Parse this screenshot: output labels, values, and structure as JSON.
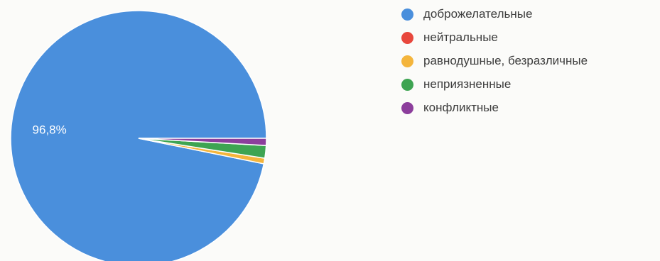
{
  "chart_data": {
    "type": "pie",
    "categories": [
      "доброжелательные",
      "нейтральные",
      "равнодушные, безразличные",
      "неприязненные",
      "конфликтные"
    ],
    "values": [
      96.8,
      0.0,
      0.7,
      1.6,
      0.9
    ],
    "colors": [
      "#4a8fdc",
      "#e8473c",
      "#f4b53c",
      "#3ea452",
      "#8c3e9c"
    ],
    "data_labels": [
      "96,8%",
      "",
      "",
      "",
      ""
    ],
    "legend_position": "right",
    "title": ""
  }
}
